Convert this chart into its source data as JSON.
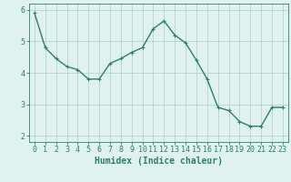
{
  "x": [
    0,
    1,
    2,
    3,
    4,
    5,
    6,
    7,
    8,
    9,
    10,
    11,
    12,
    13,
    14,
    15,
    16,
    17,
    18,
    19,
    20,
    21,
    22,
    23
  ],
  "y": [
    5.9,
    4.8,
    4.45,
    4.2,
    4.1,
    3.8,
    3.8,
    4.3,
    4.45,
    4.65,
    4.8,
    5.4,
    5.65,
    5.2,
    4.95,
    4.4,
    3.8,
    2.9,
    2.8,
    2.45,
    2.3,
    2.3,
    2.9,
    2.9
  ],
  "line_color": "#2e7d6e",
  "marker": "+",
  "marker_size": 3,
  "bg_color": "#dff2f0",
  "grid_color": "#aacfcb",
  "xlabel": "Humidex (Indice chaleur)",
  "xlim": [
    -0.5,
    23.5
  ],
  "ylim": [
    1.8,
    6.2
  ],
  "yticks": [
    2,
    3,
    4,
    5,
    6
  ],
  "xticks": [
    0,
    1,
    2,
    3,
    4,
    5,
    6,
    7,
    8,
    9,
    10,
    11,
    12,
    13,
    14,
    15,
    16,
    17,
    18,
    19,
    20,
    21,
    22,
    23
  ],
  "tick_color": "#2e7d6e",
  "label_color": "#2e7d6e",
  "font_size": 6,
  "xlabel_fontsize": 7,
  "linewidth": 1.0
}
